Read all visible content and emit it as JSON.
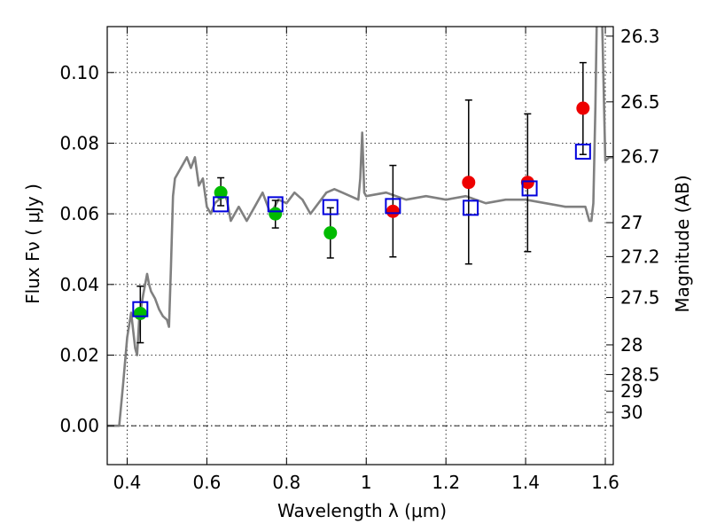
{
  "chart_data": {
    "type": "scatter",
    "title": "",
    "xlabel": "Wavelength  λ (μm)",
    "ylabel": "Flux  Fν  ( μJy )",
    "ylabel_right": "Magnitude (AB)",
    "xlim": [
      0.35,
      1.62
    ],
    "ylim": [
      -0.011,
      0.113
    ],
    "grid": true,
    "x_ticks": [
      0.4,
      0.6,
      0.8,
      1.0,
      1.2,
      1.4,
      1.6
    ],
    "x_tick_labels": [
      "0.4",
      "0.6",
      "0.8",
      "1",
      "1.2",
      "1.4",
      "1.6"
    ],
    "y_ticks": [
      0.0,
      0.02,
      0.04,
      0.06,
      0.08,
      0.1
    ],
    "y_tick_labels": [
      "0.00",
      "0.02",
      "0.04",
      "0.06",
      "0.08",
      "0.10"
    ],
    "right_ticks": [
      {
        "label": "26.3",
        "flux": 0.1103
      },
      {
        "label": "26.5",
        "flux": 0.0917
      },
      {
        "label": "26.7",
        "flux": 0.0762
      },
      {
        "label": "27",
        "flux": 0.0575
      },
      {
        "label": "27.2",
        "flux": 0.0479
      },
      {
        "label": "27.5",
        "flux": 0.0363
      },
      {
        "label": "28",
        "flux": 0.0229
      },
      {
        "label": "28.5",
        "flux": 0.0145
      },
      {
        "label": "29",
        "flux": 0.0098
      },
      {
        "label": "30",
        "flux": 0.0038
      }
    ],
    "spectrum": {
      "color": "#808080",
      "x": [
        0.35,
        0.38,
        0.39,
        0.4,
        0.41,
        0.42,
        0.425,
        0.43,
        0.44,
        0.45,
        0.455,
        0.46,
        0.47,
        0.48,
        0.49,
        0.5,
        0.505,
        0.51,
        0.515,
        0.52,
        0.53,
        0.54,
        0.55,
        0.56,
        0.57,
        0.58,
        0.59,
        0.6,
        0.61,
        0.62,
        0.63,
        0.64,
        0.65,
        0.66,
        0.67,
        0.68,
        0.7,
        0.72,
        0.74,
        0.76,
        0.78,
        0.8,
        0.82,
        0.84,
        0.86,
        0.88,
        0.9,
        0.92,
        0.94,
        0.96,
        0.98,
        0.985,
        0.99,
        0.995,
        1.0,
        1.05,
        1.1,
        1.15,
        1.2,
        1.25,
        1.3,
        1.35,
        1.4,
        1.45,
        1.5,
        1.55,
        1.56,
        1.565,
        1.57,
        1.575,
        1.58,
        1.59,
        1.6,
        1.61,
        1.62
      ],
      "y": [
        0.0,
        0.0,
        0.012,
        0.025,
        0.032,
        0.022,
        0.02,
        0.03,
        0.037,
        0.043,
        0.04,
        0.038,
        0.036,
        0.033,
        0.031,
        0.03,
        0.028,
        0.045,
        0.065,
        0.07,
        0.072,
        0.074,
        0.076,
        0.073,
        0.076,
        0.068,
        0.07,
        0.062,
        0.06,
        0.063,
        0.064,
        0.066,
        0.064,
        0.058,
        0.06,
        0.062,
        0.058,
        0.062,
        0.066,
        0.06,
        0.064,
        0.063,
        0.066,
        0.064,
        0.06,
        0.063,
        0.066,
        0.067,
        0.066,
        0.065,
        0.064,
        0.07,
        0.083,
        0.066,
        0.065,
        0.066,
        0.064,
        0.065,
        0.064,
        0.065,
        0.063,
        0.064,
        0.064,
        0.063,
        0.062,
        0.062,
        0.058,
        0.058,
        0.063,
        0.09,
        0.125,
        0.125,
        0.075,
        0.076,
        0.076
      ]
    },
    "series": [
      {
        "marker": "circle",
        "color": "#00bb00",
        "x": [
          0.433,
          0.635,
          0.772,
          0.91
        ],
        "y": [
          0.0318,
          0.066,
          0.06,
          0.0546
        ],
        "err": [
          [
            0.0235,
            0.0395
          ],
          [
            0.0623,
            0.0702
          ],
          [
            0.056,
            0.0638
          ],
          [
            0.0475,
            0.0617
          ]
        ]
      },
      {
        "marker": "circle",
        "color": "#ee0000",
        "x": [
          1.067,
          1.257,
          1.405,
          1.544
        ],
        "y": [
          0.0607,
          0.0689,
          0.0689,
          0.0899
        ],
        "err": [
          [
            0.0478,
            0.0737
          ],
          [
            0.0458,
            0.0922
          ],
          [
            0.0493,
            0.0883
          ],
          [
            0.0768,
            0.1028
          ]
        ]
      },
      {
        "marker": "open-square",
        "color": "#0000dd",
        "x": [
          0.433,
          0.635,
          0.772,
          0.91,
          1.067,
          1.262,
          1.41,
          1.544
        ],
        "y": [
          0.033,
          0.0627,
          0.0627,
          0.0619,
          0.0622,
          0.0617,
          0.0672,
          0.0776
        ]
      }
    ]
  }
}
